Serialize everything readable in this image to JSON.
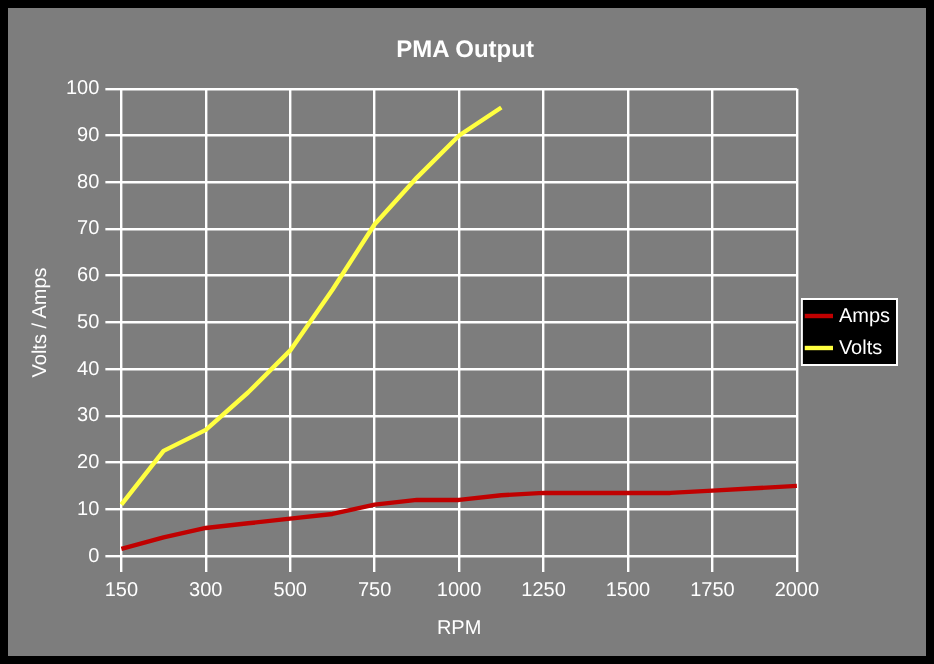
{
  "chart_data": {
    "type": "line",
    "title": "PMA Output",
    "xlabel": "RPM",
    "ylabel": "Volts / Amps",
    "categories": [
      "150",
      null,
      "300",
      null,
      "500",
      null,
      "750",
      null,
      "1000",
      null,
      "1250",
      null,
      "1500",
      null,
      "1750",
      null,
      "2000"
    ],
    "series": [
      {
        "name": "Amps",
        "color": "#c00000",
        "values": [
          1.5,
          4,
          6,
          7,
          8,
          9,
          11,
          12,
          12,
          13,
          13.5,
          13.5,
          13.5,
          13.5,
          14,
          14.5,
          15
        ]
      },
      {
        "name": "Volts",
        "color": "#ffff40",
        "values": [
          11,
          22.5,
          27,
          35,
          44,
          57,
          71,
          81,
          90,
          96,
          null,
          null,
          null,
          null,
          null,
          null,
          null
        ]
      }
    ],
    "ylim": [
      0,
      100
    ],
    "yticks": [
      0,
      10,
      20,
      30,
      40,
      50,
      60,
      70,
      80,
      90,
      100
    ],
    "grid": true,
    "legend": "right",
    "marker": "none",
    "line_style": "solid"
  }
}
